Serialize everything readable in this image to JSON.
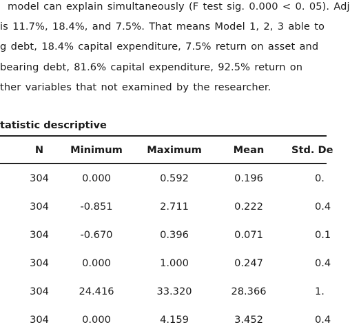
{
  "paragraph": {
    "lines": [
      "model can explain simultaneously (F test sig. 0.000 < 0. 05). Adj",
      "is 11.7%, 18.4%, and 7.5%. That means Model 1, 2, 3 able to",
      "g debt, 18.4% capital expenditure, 7.5% return on asset and",
      "bearing debt, 81.6% capital expenditure, 92.5% return on",
      "ther variables that not examined by the researcher."
    ]
  },
  "table": {
    "caption": "tatistic descriptive",
    "headers": [
      "N",
      "Minimum",
      "Maximum",
      "Mean",
      "Std. De"
    ],
    "rows": [
      [
        "304",
        "0.000",
        "0.592",
        "0.196",
        "0."
      ],
      [
        "304",
        "-0.851",
        "2.711",
        "0.222",
        "0.4"
      ],
      [
        "304",
        "-0.670",
        "0.396",
        "0.071",
        "0.1"
      ],
      [
        "304",
        "0.000",
        "1.000",
        "0.247",
        "0.4"
      ],
      [
        "304",
        "24.416",
        "33.320",
        "28.366",
        "1."
      ],
      [
        "304",
        "0.000",
        "4.159",
        "3.452",
        "0.4"
      ]
    ]
  }
}
